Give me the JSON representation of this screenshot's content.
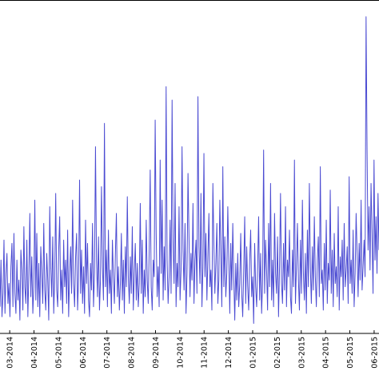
{
  "chart_data": {
    "type": "line",
    "title": "",
    "xlabel": "",
    "ylabel": "",
    "ylim": [
      0,
      100
    ],
    "grid": false,
    "legend": "none",
    "line_color": "#4b4bd2",
    "x_tick_labels": [
      "03-2014",
      "04-2014",
      "05-2014",
      "06-2014",
      "07-2014",
      "08-2014",
      "09-2014",
      "10-2014",
      "11-2014",
      "12-2014",
      "01-2015",
      "02-2015",
      "03-2015",
      "04-2015",
      "05-2015",
      "06-2015"
    ],
    "x_tick_months": [
      0,
      1,
      2,
      3,
      4,
      5,
      6,
      7,
      8,
      9,
      10,
      11,
      12,
      13,
      14,
      15
    ],
    "x_range_months": [
      -0.4,
      15.2
    ],
    "series": [
      {
        "values": [
          8,
          22,
          5,
          12,
          28,
          6,
          18,
          24,
          9,
          15,
          5,
          20,
          27,
          8,
          30,
          12,
          6,
          22,
          10,
          16,
          4,
          25,
          19,
          7,
          32,
          14,
          9,
          28,
          5,
          18,
          36,
          11,
          23,
          6,
          14,
          40,
          10,
          30,
          8,
          21,
          5,
          26,
          18,
          9,
          33,
          13,
          7,
          24,
          16,
          4,
          38,
          20,
          11,
          29,
          6,
          17,
          42,
          13,
          8,
          25,
          35,
          10,
          19,
          6,
          28,
          14,
          22,
          9,
          31,
          5,
          18,
          26,
          12,
          40,
          15,
          8,
          23,
          30,
          7,
          17,
          46,
          12,
          25,
          9,
          20,
          6,
          34,
          15,
          27,
          10,
          5,
          21,
          13,
          33,
          8,
          18,
          56,
          22,
          11,
          29,
          7,
          16,
          44,
          20,
          10,
          63,
          14,
          25,
          8,
          31,
          12,
          19,
          6,
          28,
          17,
          9,
          24,
          36,
          11,
          20,
          7,
          15,
          30,
          10,
          22,
          6,
          26,
          14,
          41,
          17,
          9,
          23,
          12,
          32,
          7,
          18,
          27,
          10,
          21,
          8,
          15,
          39,
          12,
          28,
          6,
          19,
          11,
          34,
          16,
          9,
          25,
          49,
          14,
          7,
          22,
          17,
          64,
          30,
          11,
          20,
          8,
          52,
          18,
          40,
          10,
          26,
          13,
          74,
          22,
          9,
          17,
          34,
          12,
          70,
          27,
          15,
          45,
          8,
          21,
          14,
          38,
          10,
          19,
          56,
          25,
          13,
          33,
          6,
          18,
          48,
          29,
          11,
          24,
          16,
          39,
          9,
          22,
          28,
          12,
          71,
          26,
          15,
          42,
          8,
          20,
          54,
          17,
          30,
          10,
          23,
          36,
          14,
          19,
          7,
          45,
          27,
          12,
          21,
          33,
          9,
          16,
          40,
          24,
          8,
          50,
          14,
          29,
          11,
          18,
          38,
          22,
          6,
          27,
          13,
          33,
          17,
          4,
          21,
          10,
          24,
          8,
          15,
          30,
          12,
          5,
          19,
          35,
          9,
          26,
          14,
          7,
          22,
          31,
          11,
          17,
          3,
          27,
          14,
          8,
          20,
          35,
          10,
          24,
          6,
          16,
          55,
          12,
          28,
          19,
          7,
          33,
          14,
          45,
          10,
          22,
          8,
          36,
          18,
          12,
          29,
          5,
          20,
          42,
          15,
          9,
          27,
          13,
          38,
          8,
          22,
          17,
          31,
          11,
          6,
          25,
          14,
          52,
          9,
          20,
          33,
          16,
          7,
          28,
          12,
          40,
          18,
          10,
          24,
          6,
          31,
          14,
          45,
          20,
          9,
          26,
          13,
          35,
          17,
          8,
          22,
          29,
          11,
          50,
          15,
          19,
          7,
          27,
          13,
          34,
          9,
          21,
          16,
          43,
          12,
          25,
          8,
          30,
          15,
          20,
          11,
          38,
          7,
          23,
          17,
          28,
          10,
          33,
          14,
          19,
          26,
          9,
          47,
          15,
          22,
          12,
          31,
          8,
          18,
          36,
          24,
          11,
          27,
          16,
          40,
          13,
          20,
          28,
          17,
          95,
          55,
          25,
          38,
          19,
          45,
          30,
          12,
          52,
          22,
          35,
          18,
          42,
          25
        ]
      }
    ]
  }
}
